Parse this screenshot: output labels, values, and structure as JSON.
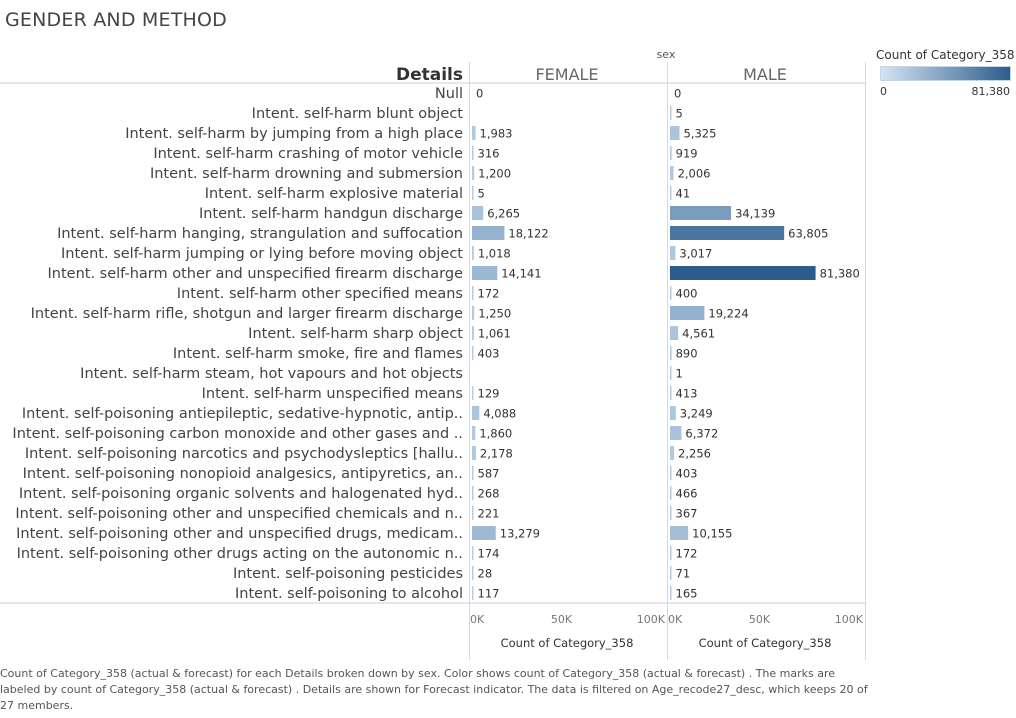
{
  "title": "GENDER AND METHOD",
  "legend": {
    "title": "Count of Category_358",
    "min_label": "0",
    "max_label": "81,380",
    "color_min": "#d3e4f3",
    "color_max": "#2b5d8c"
  },
  "footer_text": "Count of Category_358 (actual & forecast)  for each Details broken down by sex.  Color shows count of Category_358 (actual & forecast) .  The marks are labeled by count of Category_358 (actual & forecast) .  Details are shown for Forecast indicator. The data is filtered on Age_recode27_desc, which keeps 20 of 27 members.",
  "chart_data": {
    "type": "bar",
    "orientation": "horizontal",
    "row_header": "Details",
    "column_header": "sex",
    "categories": [
      "Null",
      "Intent. self-harm blunt object",
      "Intent. self-harm by jumping from a high place",
      "Intent. self-harm crashing of motor vehicle",
      "Intent. self-harm drowning and submersion",
      "Intent. self-harm explosive material",
      "Intent. self-harm handgun discharge",
      "Intent. self-harm hanging, strangulation and suffocation",
      "Intent. self-harm jumping or lying before moving object",
      "Intent. self-harm other and unspecified firearm discharge",
      "Intent. self-harm other specified means",
      "Intent. self-harm rifle, shotgun and larger firearm discharge",
      "Intent. self-harm sharp object",
      "Intent. self-harm smoke, fire and flames",
      "Intent. self-harm steam, hot vapours and hot objects",
      "Intent. self-harm unspecified means",
      "Intent. self-poisoning antiepileptic, sedative-hypnotic, antip..",
      "Intent. self-poisoning carbon monoxide and other gases and ..",
      "Intent. self-poisoning narcotics and psychodysleptics [hallu..",
      "Intent. self-poisoning nonopioid analgesics, antipyretics, an..",
      "Intent. self-poisoning organic solvents and halogenated hyd..",
      "Intent. self-poisoning other and unspecified chemicals and n..",
      "Intent. self-poisoning other and unspecified drugs, medicam..",
      "Intent. self-poisoning other drugs acting on the autonomic n..",
      "Intent. self-poisoning pesticides",
      "Intent. self-poisoning to alcohol"
    ],
    "series": [
      {
        "name": "FEMALE",
        "values": [
          0,
          null,
          1983,
          316,
          1200,
          5,
          6265,
          18122,
          1018,
          14141,
          172,
          1250,
          1061,
          403,
          null,
          129,
          4088,
          1860,
          2178,
          587,
          268,
          221,
          13279,
          174,
          28,
          117
        ],
        "labels": [
          "0",
          "",
          "1,983",
          "316",
          "1,200",
          "5",
          "6,265",
          "18,122",
          "1,018",
          "14,141",
          "172",
          "1,250",
          "1,061",
          "403",
          "",
          "129",
          "4,088",
          "1,860",
          "2,178",
          "587",
          "268",
          "221",
          "13,279",
          "174",
          "28",
          "117"
        ]
      },
      {
        "name": "MALE",
        "values": [
          0,
          5,
          5325,
          919,
          2006,
          41,
          34139,
          63805,
          3017,
          81380,
          400,
          19224,
          4561,
          890,
          1,
          413,
          3249,
          6372,
          2256,
          403,
          466,
          367,
          10155,
          172,
          71,
          165
        ],
        "labels": [
          "0",
          "5",
          "5,325",
          "919",
          "2,006",
          "41",
          "34,139",
          "63,805",
          "3,017",
          "81,380",
          "400",
          "19,224",
          "4,561",
          "890",
          "1",
          "413",
          "3,249",
          "6,372",
          "2,256",
          "403",
          "466",
          "367",
          "10,155",
          "172",
          "71",
          "165"
        ]
      }
    ],
    "x_ticks": [
      0,
      50000,
      100000
    ],
    "x_tick_labels": [
      "0K",
      "50K",
      "100K"
    ],
    "xlim": [
      0,
      109000
    ],
    "xlabel": "Count of Category_358",
    "color_range": [
      0,
      81380
    ]
  }
}
